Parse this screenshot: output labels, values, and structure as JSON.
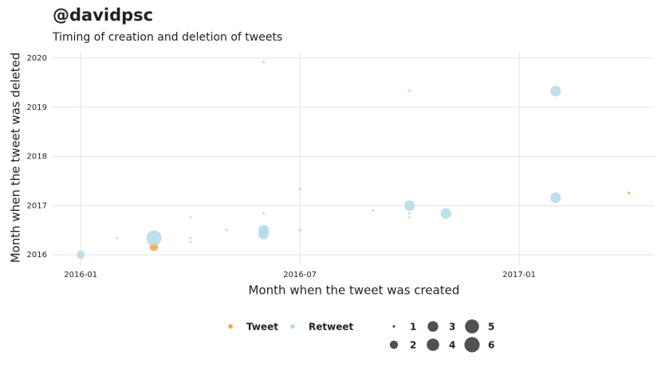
{
  "chart_data": {
    "type": "scatter",
    "title": "@davidpsc",
    "subtitle": "Timing of creation and deletion of tweets",
    "x_label": "Month when the tweet was created",
    "y_label": "Month when the tweet was deleted",
    "xlim": [
      2015.936,
      2017.307
    ],
    "ylim": [
      2015.79,
      2020.13
    ],
    "xticks": [
      {
        "value": 2016,
        "label": "2016-01"
      },
      {
        "value": 2016.5,
        "label": "2016-07"
      },
      {
        "value": 2017,
        "label": "2017-01"
      }
    ],
    "yticks": [
      2016,
      2017,
      2018,
      2019,
      2020
    ],
    "grid": true,
    "legend": "bottom",
    "size_legend": [
      1,
      2,
      3,
      4,
      5,
      6
    ],
    "series": [
      {
        "name": "Tweet",
        "color": "#f5a340",
        "x": [
          2016.167,
          2017.25
        ],
        "values": [
          2016.16,
          2017.26
        ],
        "sizes": [
          2,
          1
        ]
      },
      {
        "name": "Retweet",
        "color": "#b3dbe8",
        "x": [
          2016.0,
          2016.083,
          2016.167,
          2016.25,
          2016.25,
          2016.25,
          2016.333,
          2016.417,
          2016.417,
          2016.417,
          2016.417,
          2016.5,
          2016.5,
          2016.667,
          2016.75,
          2016.75,
          2016.75,
          2016.75,
          2016.833,
          2017.083,
          2017.083
        ],
        "values": [
          2016.0,
          2016.34,
          2016.34,
          2016.76,
          2016.34,
          2016.26,
          2016.5,
          2019.92,
          2016.84,
          2016.5,
          2016.42,
          2017.34,
          2016.5,
          2016.9,
          2019.34,
          2017.0,
          2016.84,
          2016.76,
          2016.84,
          2019.33,
          2017.16
        ],
        "sizes": [
          2,
          1,
          6,
          1,
          1,
          1,
          1,
          1,
          1,
          3,
          3,
          1,
          1,
          1,
          1,
          3,
          1,
          1,
          3,
          3,
          3
        ]
      }
    ]
  }
}
